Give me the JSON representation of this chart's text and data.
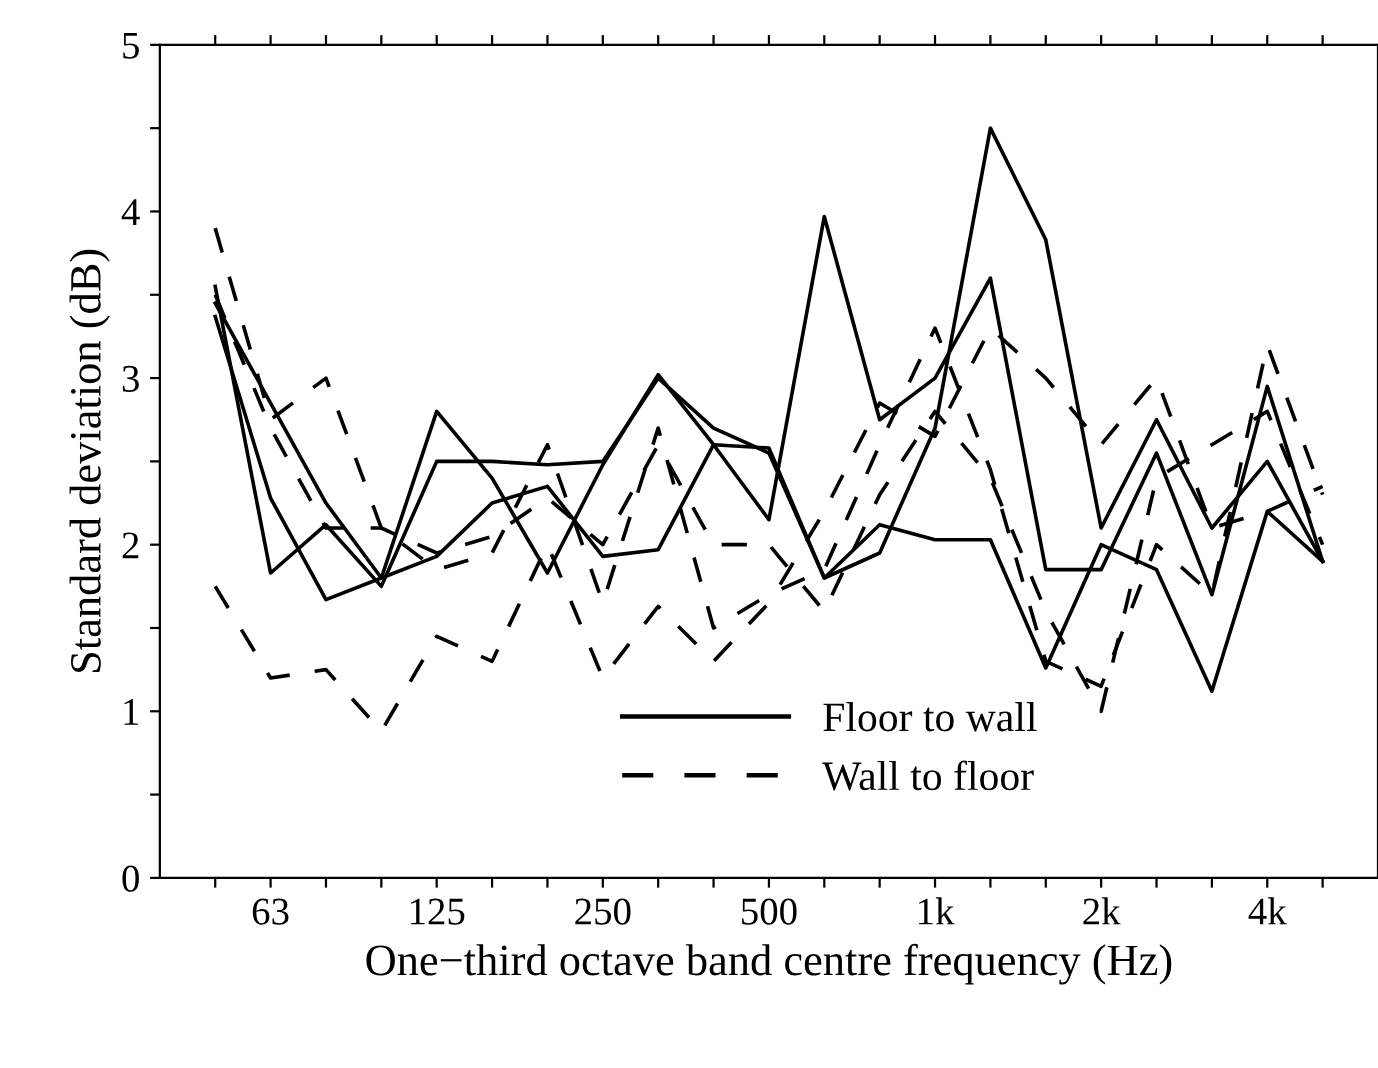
{
  "chart_data": {
    "type": "line",
    "xlabel": "One−third octave band centre frequency (Hz)",
    "ylabel": "Standard deviation (dB)",
    "categories": [
      null,
      "63",
      null,
      null,
      "125",
      null,
      null,
      "250",
      null,
      null,
      "500",
      null,
      null,
      "1k",
      null,
      null,
      "2k",
      null,
      null,
      "4k",
      null
    ],
    "series": [
      {
        "name": "Floor to wall",
        "color": "#000000",
        "line_style": "solid",
        "values": [
          3.55,
          1.83,
          2.12,
          1.75,
          2.5,
          2.5,
          2.48,
          2.5,
          3.0,
          2.7,
          2.55,
          1.8,
          1.95,
          2.7,
          4.5,
          3.83,
          2.1,
          2.75,
          2.1,
          2.5,
          1.9
        ]
      },
      {
        "color": "#000000",
        "line_style": "solid",
        "values": [
          3.45,
          2.85,
          2.25,
          1.8,
          2.8,
          2.4,
          1.83,
          2.48,
          3.02,
          2.6,
          2.15,
          3.97,
          2.75,
          3.0,
          3.6,
          1.85,
          1.85,
          2.55,
          1.7,
          2.95,
          1.9
        ]
      },
      {
        "color": "#000000",
        "line_style": "solid",
        "values": [
          3.37,
          2.28,
          1.67,
          1.8,
          1.93,
          2.25,
          2.35,
          1.93,
          1.97,
          2.6,
          2.58,
          1.8,
          2.12,
          2.03,
          2.03,
          1.26,
          2.0,
          1.85,
          1.12,
          2.2,
          1.9
        ]
      },
      {
        "name": "Wall to floor",
        "color": "#000000",
        "line_style": "dashed",
        "values": [
          3.9,
          2.75,
          3.0,
          2.1,
          1.85,
          1.95,
          2.6,
          1.65,
          2.7,
          1.5,
          1.7,
          1.85,
          2.6,
          3.3,
          2.45,
          1.3,
          1.15,
          2.0,
          1.7,
          3.2,
          2.3
        ]
      },
      {
        "color": "#000000",
        "line_style": "dashed",
        "values": [
          1.75,
          1.2,
          1.25,
          0.88,
          1.45,
          1.3,
          2.0,
          1.2,
          1.63,
          1.3,
          1.65,
          2.2,
          2.85,
          2.65,
          3.3,
          3.0,
          2.6,
          3.0,
          2.1,
          2.2,
          2.35
        ]
      },
      {
        "color": "#000000",
        "line_style": "dashed",
        "values": [
          3.5,
          2.7,
          2.1,
          2.1,
          1.95,
          2.05,
          2.28,
          2.0,
          2.6,
          2.0,
          2.0,
          1.6,
          2.3,
          2.8,
          2.4,
          1.6,
          1.0,
          2.4,
          2.6,
          2.8,
          2.0
        ]
      }
    ],
    "ylim": [
      0,
      5
    ],
    "yticks": [
      0,
      {
        "value": 0.5,
        "label": null
      },
      1,
      {
        "value": 1.5,
        "label": null
      },
      2,
      {
        "value": 2.5,
        "label": null
      },
      3,
      {
        "value": 3.5,
        "label": null
      },
      4,
      {
        "value": 4.5,
        "label": null
      },
      5
    ],
    "grid": false,
    "legend": "bottom",
    "marker": "none"
  }
}
